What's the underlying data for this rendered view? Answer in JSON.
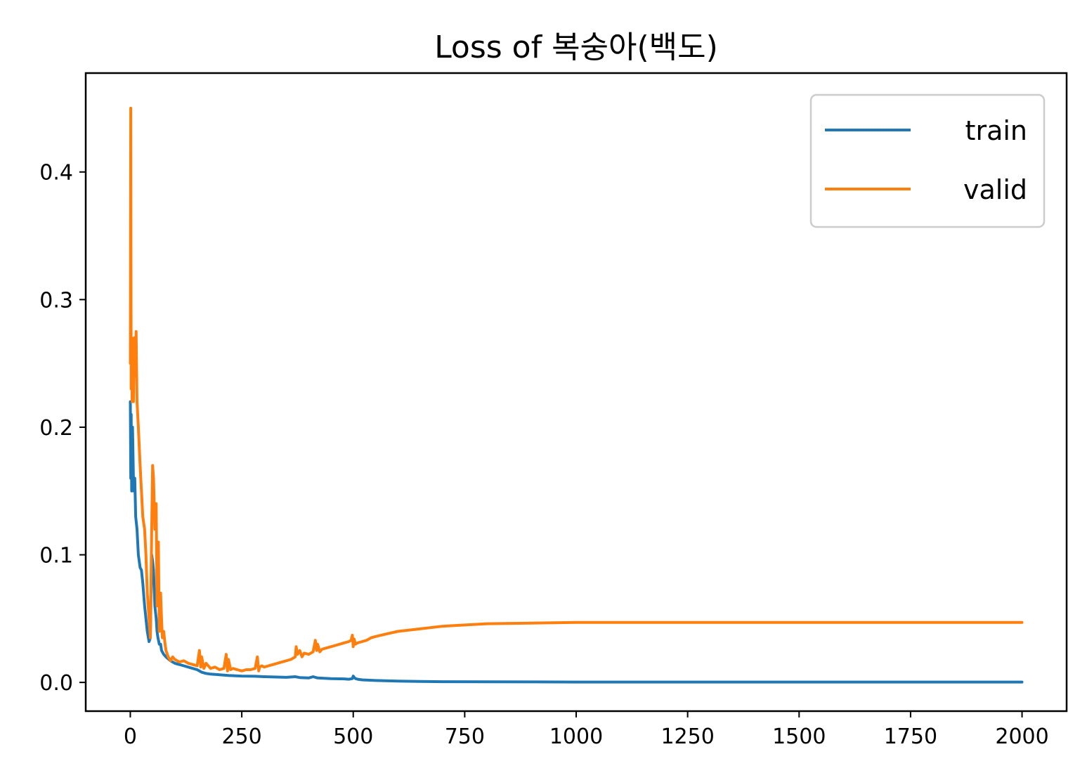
{
  "chart_data": {
    "type": "line",
    "title": "Loss of 복숭아(백도)",
    "xlabel": "",
    "ylabel": "",
    "xlim": [
      -100,
      2100
    ],
    "ylim": [
      -0.0225,
      0.4775
    ],
    "xticks": [
      0,
      250,
      500,
      750,
      1000,
      1250,
      1500,
      1750,
      2000
    ],
    "xtick_labels": [
      "0",
      "250",
      "500",
      "750",
      "1000",
      "1250",
      "1500",
      "1750",
      "2000"
    ],
    "yticks": [
      0.0,
      0.1,
      0.2,
      0.3,
      0.4
    ],
    "ytick_labels": [
      "0.0",
      "0.1",
      "0.2",
      "0.3",
      "0.4"
    ],
    "grid": false,
    "legend_position": "top-right",
    "series": [
      {
        "name": "train",
        "color": "#1f77b4",
        "x": [
          0,
          1,
          2,
          3,
          5,
          7,
          8,
          10,
          12,
          15,
          18,
          22,
          25,
          28,
          32,
          35,
          38,
          42,
          45,
          48,
          50,
          52,
          55,
          58,
          60,
          62,
          65,
          68,
          70,
          75,
          80,
          90,
          100,
          120,
          140,
          150,
          160,
          170,
          180,
          200,
          220,
          250,
          280,
          300,
          350,
          370,
          380,
          400,
          410,
          420,
          450,
          480,
          490,
          498,
          500,
          502,
          505,
          510,
          520,
          550,
          600,
          650,
          700,
          800,
          900,
          1000,
          1250,
          1500,
          1750,
          2000
        ],
        "values": [
          0.22,
          0.16,
          0.21,
          0.15,
          0.2,
          0.16,
          0.15,
          0.16,
          0.13,
          0.12,
          0.1,
          0.09,
          0.088,
          0.078,
          0.06,
          0.05,
          0.04,
          0.032,
          0.035,
          0.1,
          0.095,
          0.088,
          0.06,
          0.05,
          0.04,
          0.035,
          0.03,
          0.03,
          0.025,
          0.022,
          0.02,
          0.017,
          0.015,
          0.013,
          0.011,
          0.01,
          0.008,
          0.007,
          0.0065,
          0.006,
          0.0055,
          0.005,
          0.0048,
          0.0045,
          0.004,
          0.0045,
          0.0038,
          0.0035,
          0.0045,
          0.0035,
          0.003,
          0.0028,
          0.0025,
          0.003,
          0.005,
          0.004,
          0.003,
          0.0025,
          0.002,
          0.0015,
          0.001,
          0.0008,
          0.0006,
          0.0005,
          0.0004,
          0.0003,
          0.0003,
          0.0003,
          0.0003,
          0.0003
        ]
      },
      {
        "name": "valid",
        "color": "#ff7f0e",
        "x": [
          0,
          1,
          2,
          3,
          4,
          5,
          7,
          9,
          11,
          13,
          15,
          18,
          22,
          25,
          28,
          32,
          35,
          38,
          42,
          45,
          48,
          50,
          52,
          55,
          58,
          60,
          63,
          65,
          68,
          70,
          72,
          75,
          78,
          80,
          85,
          90,
          95,
          100,
          110,
          120,
          130,
          140,
          150,
          155,
          158,
          160,
          165,
          170,
          180,
          190,
          200,
          210,
          215,
          218,
          220,
          225,
          230,
          240,
          250,
          260,
          270,
          280,
          285,
          288,
          290,
          295,
          300,
          320,
          340,
          360,
          370,
          372,
          375,
          380,
          385,
          390,
          400,
          410,
          415,
          418,
          420,
          425,
          430,
          440,
          450,
          460,
          470,
          480,
          490,
          495,
          498,
          500,
          502,
          505,
          510,
          520,
          530,
          540,
          550,
          575,
          600,
          650,
          700,
          750,
          800,
          900,
          1000,
          1100,
          1250,
          1500,
          1750,
          2000
        ],
        "values": [
          0.25,
          0.45,
          0.23,
          0.27,
          0.22,
          0.25,
          0.22,
          0.27,
          0.24,
          0.275,
          0.22,
          0.2,
          0.17,
          0.15,
          0.13,
          0.12,
          0.1,
          0.07,
          0.05,
          0.035,
          0.12,
          0.17,
          0.16,
          0.12,
          0.14,
          0.06,
          0.11,
          0.04,
          0.07,
          0.05,
          0.035,
          0.04,
          0.03,
          0.025,
          0.02,
          0.017,
          0.02,
          0.018,
          0.016,
          0.017,
          0.015,
          0.014,
          0.013,
          0.025,
          0.012,
          0.02,
          0.011,
          0.015,
          0.011,
          0.012,
          0.01,
          0.011,
          0.022,
          0.009,
          0.018,
          0.01,
          0.011,
          0.01,
          0.009,
          0.01,
          0.01,
          0.011,
          0.02,
          0.009,
          0.012,
          0.013,
          0.012,
          0.014,
          0.016,
          0.018,
          0.02,
          0.028,
          0.022,
          0.025,
          0.02,
          0.023,
          0.022,
          0.024,
          0.033,
          0.025,
          0.03,
          0.024,
          0.026,
          0.027,
          0.028,
          0.029,
          0.03,
          0.031,
          0.032,
          0.033,
          0.037,
          0.028,
          0.034,
          0.03,
          0.031,
          0.032,
          0.033,
          0.035,
          0.036,
          0.038,
          0.04,
          0.042,
          0.044,
          0.045,
          0.046,
          0.0465,
          0.047,
          0.047,
          0.047,
          0.047,
          0.047,
          0.047
        ]
      }
    ]
  }
}
